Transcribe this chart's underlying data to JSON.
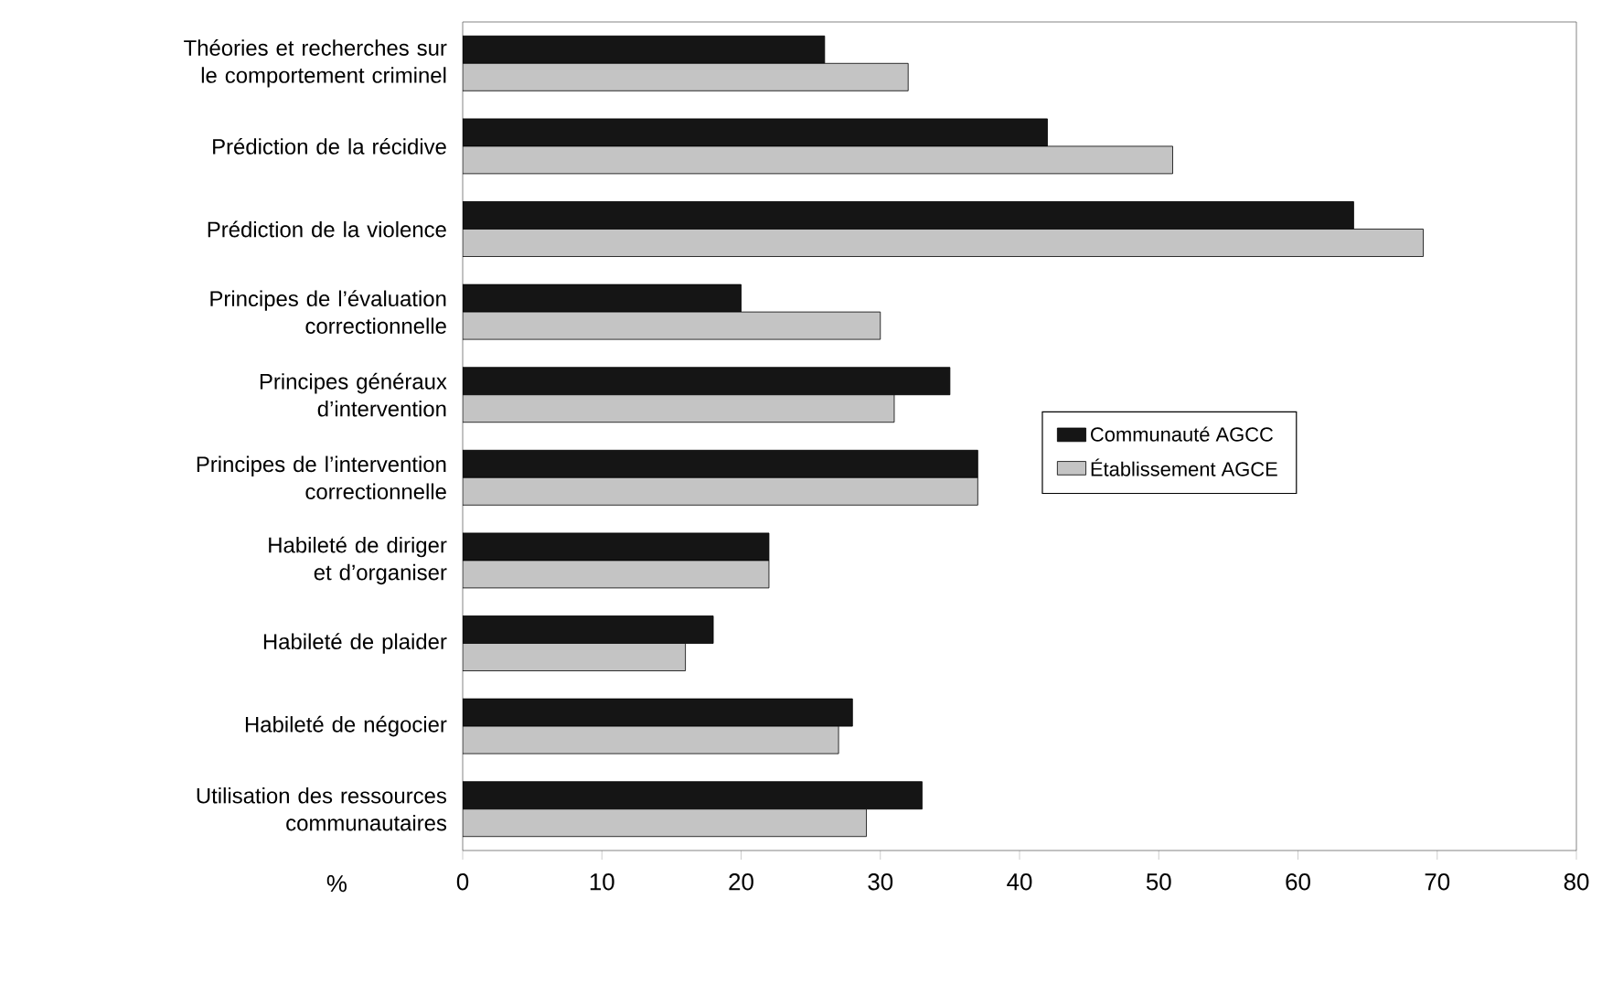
{
  "chart_data": {
    "type": "bar",
    "orientation": "horizontal",
    "xlabel": "%",
    "categories": [
      "Théories et recherches sur le comportement criminel",
      "Prédiction de la récidive",
      "Prédiction de la violence",
      "Principes de l’évaluation correctionnelle",
      "Principes généraux d’intervention",
      "Principes de l’intervention correctionnelle",
      "Habileté de diriger et d’organiser",
      "Habileté de plaider",
      "Habileté de négocier",
      "Utilisation des ressources communautaires"
    ],
    "series": [
      {
        "name": "Communauté AGCC",
        "color": "#151515",
        "values": [
          26,
          42,
          64,
          20,
          35,
          37,
          22,
          18,
          28,
          33
        ]
      },
      {
        "name": "Établissement AGCE",
        "color": "#c4c4c4",
        "values": [
          32,
          51,
          69,
          30,
          31,
          37,
          22,
          16,
          27,
          29
        ]
      }
    ],
    "xlim": [
      0,
      80
    ],
    "xticks": [
      0,
      10,
      20,
      30,
      40,
      50,
      60,
      70,
      80
    ],
    "legend": "right",
    "grid": false
  }
}
